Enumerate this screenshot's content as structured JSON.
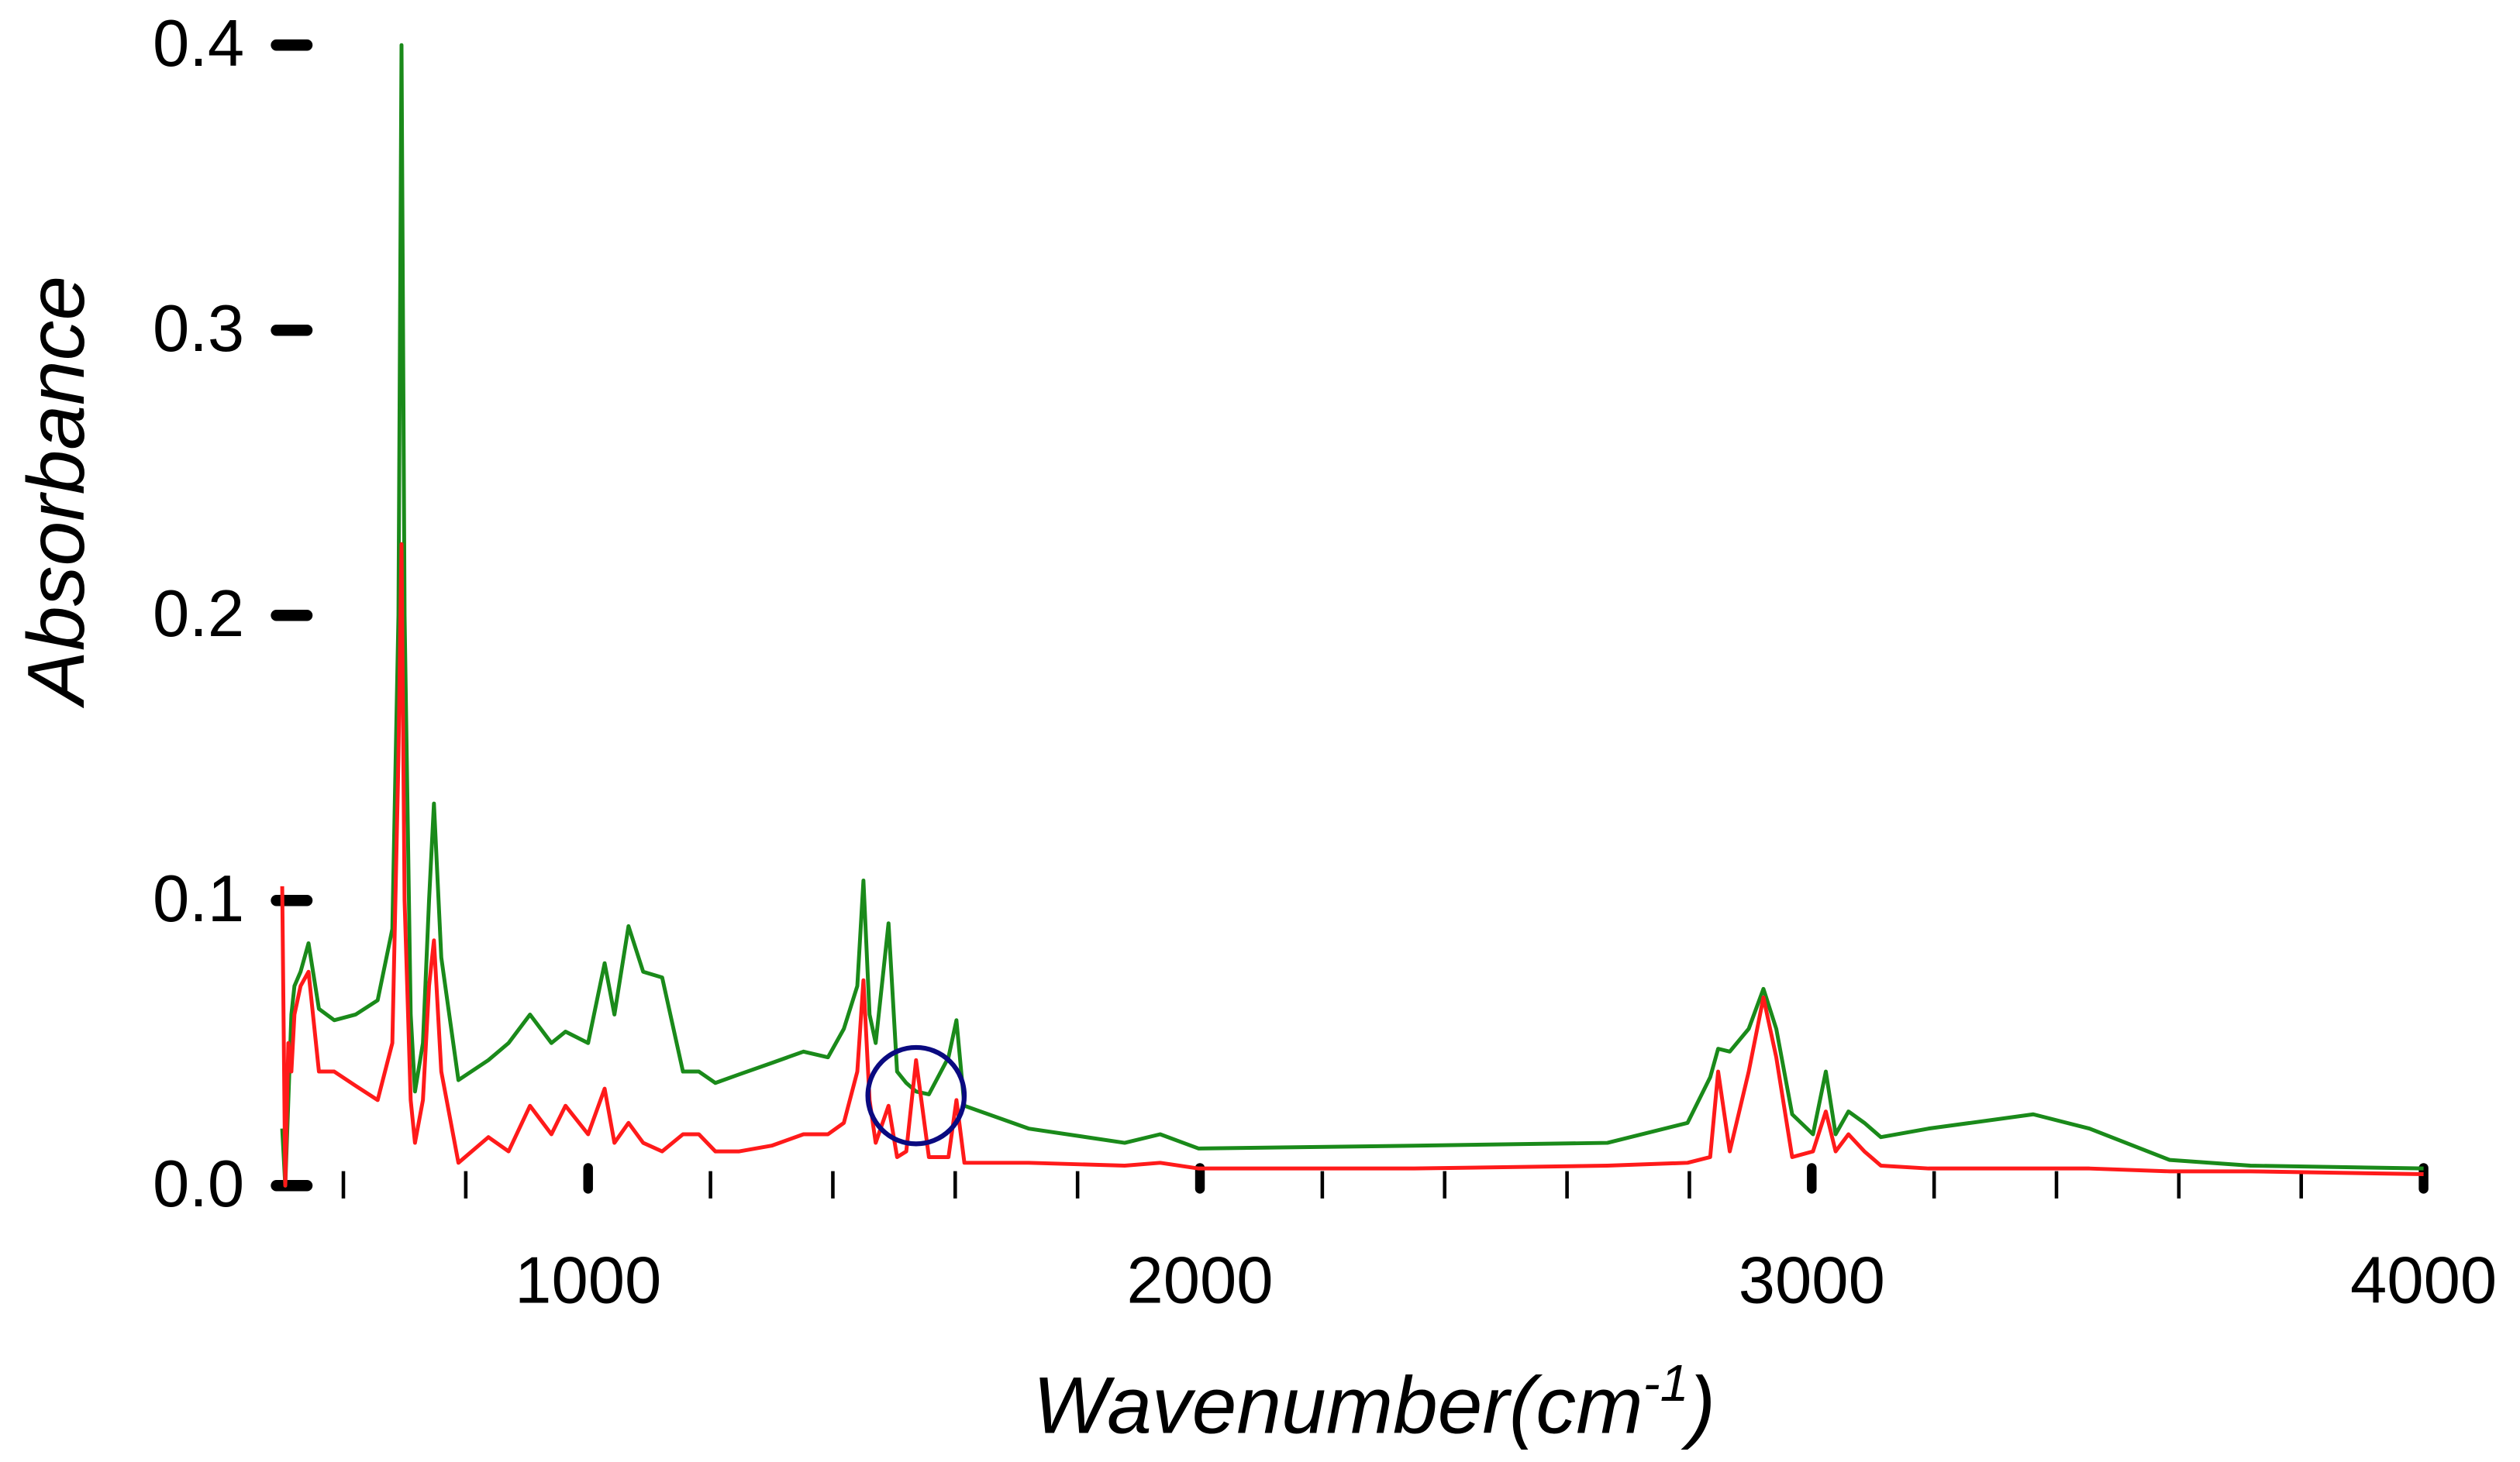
{
  "chart_data": {
    "type": "line",
    "xlabel": [
      "Wavenumber(cm",
      "-1",
      ")"
    ],
    "ylabel": "Absorbance",
    "xlim": [
      500,
      4000
    ],
    "ylim": [
      0,
      0.4
    ],
    "xticks": [
      1000,
      2000,
      3000,
      4000
    ],
    "xminorticks": [
      600,
      800,
      1200,
      1400,
      1600,
      1800,
      2200,
      2400,
      2600,
      2800,
      3200,
      3400,
      3600,
      3800
    ],
    "yticks": [
      {
        "value": 0,
        "label": "0.0"
      },
      0.1,
      0.2,
      0.3,
      0.4
    ],
    "grid": false,
    "x": [
      500,
      505,
      510,
      515,
      520,
      530,
      543,
      560,
      585,
      620,
      656,
      680,
      690,
      695,
      700,
      710,
      717,
      730,
      740,
      748,
      760,
      788,
      837,
      870,
      905,
      940,
      963,
      1000,
      1027,
      1043,
      1066,
      1090,
      1121,
      1155,
      1181,
      1208,
      1247,
      1300,
      1352,
      1392,
      1418,
      1440,
      1450,
      1460,
      1470,
      1491,
      1505,
      1520,
      1536,
      1557,
      1589,
      1602,
      1615,
      1720,
      1877,
      1935,
      1998,
      2350,
      2666,
      2797,
      2834,
      2847,
      2866,
      2897,
      2921,
      2942,
      2968,
      3002,
      3023,
      3039,
      3060,
      3086,
      3113,
      3191,
      3362,
      3454,
      3585,
      3717,
      4000
    ],
    "series": [
      {
        "color": "#1a8a1a",
        "values": [
          0.02,
          0.0,
          0.03,
          0.06,
          0.07,
          0.075,
          0.085,
          0.062,
          0.058,
          0.06,
          0.065,
          0.09,
          0.2,
          0.4,
          0.2,
          0.06,
          0.033,
          0.05,
          0.1,
          0.134,
          0.08,
          0.037,
          0.044,
          0.05,
          0.06,
          0.05,
          0.054,
          0.05,
          0.078,
          0.06,
          0.091,
          0.075,
          0.073,
          0.04,
          0.04,
          0.036,
          0.039,
          0.043,
          0.047,
          0.045,
          0.055,
          0.07,
          0.107,
          0.06,
          0.05,
          0.092,
          0.04,
          0.036,
          0.033,
          0.032,
          0.045,
          0.058,
          0.028,
          0.02,
          0.015,
          0.018,
          0.013,
          0.014,
          0.015,
          0.022,
          0.038,
          0.048,
          0.047,
          0.055,
          0.069,
          0.055,
          0.025,
          0.018,
          0.04,
          0.018,
          0.026,
          0.022,
          0.017,
          0.02,
          0.025,
          0.02,
          0.009,
          0.007,
          0.006
        ]
      },
      {
        "color": "#ff1a1a",
        "values": [
          0.105,
          0.0,
          0.05,
          0.04,
          0.06,
          0.07,
          0.075,
          0.04,
          0.04,
          0.035,
          0.03,
          0.05,
          0.15,
          0.225,
          0.1,
          0.03,
          0.015,
          0.03,
          0.07,
          0.086,
          0.04,
          0.008,
          0.017,
          0.012,
          0.028,
          0.018,
          0.028,
          0.018,
          0.034,
          0.015,
          0.022,
          0.015,
          0.012,
          0.018,
          0.018,
          0.012,
          0.012,
          0.014,
          0.018,
          0.018,
          0.022,
          0.04,
          0.072,
          0.03,
          0.015,
          0.028,
          0.01,
          0.012,
          0.044,
          0.01,
          0.01,
          0.03,
          0.008,
          0.008,
          0.007,
          0.008,
          0.006,
          0.006,
          0.007,
          0.008,
          0.01,
          0.04,
          0.012,
          0.04,
          0.066,
          0.045,
          0.01,
          0.012,
          0.026,
          0.012,
          0.018,
          0.012,
          0.007,
          0.006,
          0.006,
          0.006,
          0.005,
          0.005,
          0.004
        ]
      }
    ]
  }
}
